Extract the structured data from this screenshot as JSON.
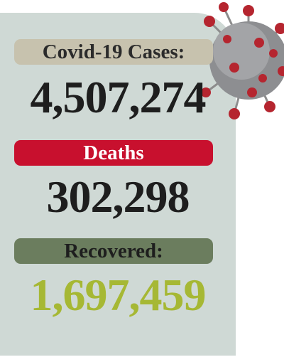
{
  "cases": {
    "label": "Covid-19 Cases:",
    "value": "4,507,274"
  },
  "deaths": {
    "label": "Deaths",
    "value": "302,298"
  },
  "recovered": {
    "label": "Recovered:",
    "value": "1,697,459"
  }
}
